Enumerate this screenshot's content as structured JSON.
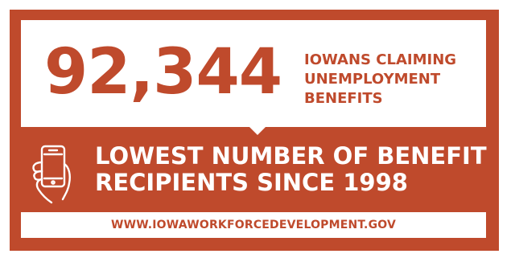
{
  "stat": {
    "number": "92,344",
    "label_lines": [
      "IOWANS CLAIMING",
      "UNEMPLOYMENT",
      "BENEFITS"
    ]
  },
  "headline": {
    "line1": "LOWEST NUMBER OF BENEFIT",
    "line2": "RECIPIENTS SINCE 1998"
  },
  "footer": {
    "url": "WWW.IOWAWORKFORCEDEVELOPMENT.GOV"
  },
  "icons": {
    "phone": "hand-holding-phone-icon"
  },
  "colors": {
    "background": "#bf4a2c",
    "panel": "#ffffff",
    "accent_text": "#bf4a2c",
    "inverse_text": "#ffffff"
  }
}
